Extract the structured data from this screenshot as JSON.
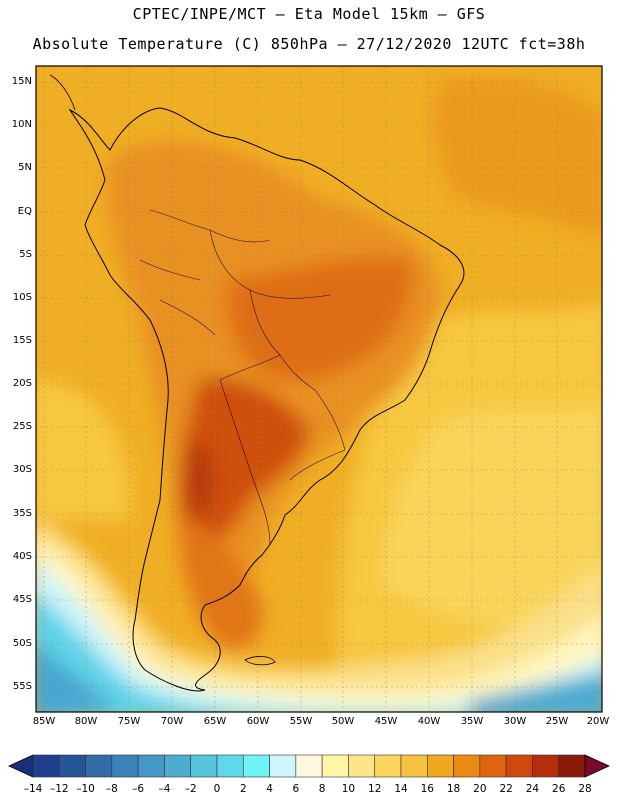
{
  "title": {
    "line1": "CPTEC/INPE/MCT –  Eta Model 15km – GFS",
    "line2": "Absolute Temperature (C) 850hPa – 27/12/2020 12UTC fct=38h"
  },
  "lat_labels": [
    "15N",
    "10N",
    "5N",
    "EQ",
    "5S",
    "10S",
    "15S",
    "20S",
    "25S",
    "30S",
    "35S",
    "40S",
    "45S",
    "50S",
    "55S"
  ],
  "lon_labels": [
    "85W",
    "80W",
    "75W",
    "70W",
    "65W",
    "60W",
    "55W",
    "50W",
    "45W",
    "40W",
    "35W",
    "30W",
    "25W",
    "20W"
  ],
  "colorbar": {
    "labels": [
      "–14",
      "–12",
      "–10",
      "–8",
      "–6",
      "–4",
      "–2",
      "0",
      "2",
      "4",
      "6",
      "8",
      "10",
      "12",
      "14",
      "16",
      "18",
      "20",
      "22",
      "24",
      "26",
      "28"
    ],
    "colors": [
      "#1e3f8c",
      "#265597",
      "#2f6ca8",
      "#3a82b8",
      "#4597c5",
      "#4eabd2",
      "#58c3df",
      "#5fd8ea",
      "#6ef3f6",
      "#cdf7fb",
      "#fff7e0",
      "#fff6a8",
      "#fde68a",
      "#fbd55c",
      "#f6c13f",
      "#f0a81e",
      "#eb8a10",
      "#df6410",
      "#cf4810",
      "#b52e0c",
      "#8c1a08"
    ],
    "under_color": "#1a2f7a",
    "over_color": "#7a0a2a"
  }
}
